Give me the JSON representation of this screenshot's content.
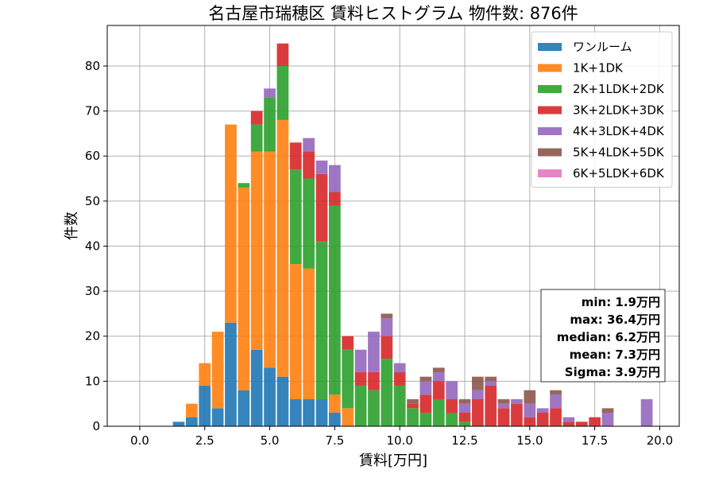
{
  "chart_data": {
    "type": "bar",
    "stacked": true,
    "title": "名古屋市瑞穂区 賃料ヒストグラム  物件数: 876件",
    "xlabel": "賃料[万円]",
    "ylabel": "件数",
    "xlim": [
      -1.25,
      20.75
    ],
    "ylim": [
      0,
      89
    ],
    "xticks": [
      "0.0",
      "2.5",
      "5.0",
      "7.5",
      "10.0",
      "12.5",
      "15.0",
      "17.5",
      "20.0"
    ],
    "xtick_values": [
      0,
      2.5,
      5,
      7.5,
      10,
      12.5,
      15,
      17.5,
      20
    ],
    "yticks": [
      0,
      10,
      20,
      30,
      40,
      50,
      60,
      70,
      80
    ],
    "grid": true,
    "legend_position": "top-right",
    "bin_width": 0.5,
    "x": [
      1.5,
      2.0,
      2.5,
      3.0,
      3.5,
      4.0,
      4.5,
      5.0,
      5.5,
      6.0,
      6.5,
      7.0,
      7.5,
      8.0,
      8.5,
      9.0,
      9.5,
      10.0,
      10.5,
      11.0,
      11.5,
      12.0,
      12.5,
      13.0,
      13.5,
      14.0,
      14.5,
      15.0,
      15.5,
      16.0,
      16.5,
      17.0,
      17.5,
      18.0,
      19.5
    ],
    "series": [
      {
        "name": "ワンルーム",
        "color": "#1f77b4",
        "values": [
          1,
          2,
          9,
          4,
          23,
          8,
          17,
          13,
          11,
          6,
          6,
          6,
          3,
          0,
          0,
          0,
          0,
          0,
          0,
          0,
          0,
          0,
          0,
          0,
          0,
          0,
          0,
          0,
          0,
          0,
          0,
          0,
          0,
          0,
          0
        ]
      },
      {
        "name": "1K+1DK",
        "color": "#ff7f0e",
        "values": [
          0,
          3,
          5,
          17,
          44,
          45,
          44,
          48,
          57,
          30,
          29,
          0,
          4,
          4,
          0,
          0,
          0,
          0,
          0,
          0,
          0,
          0,
          0,
          0,
          0,
          0,
          0,
          0,
          0,
          0,
          0,
          0,
          0,
          0,
          0
        ]
      },
      {
        "name": "2K+1LDK+2DK",
        "color": "#2ca02c",
        "values": [
          0,
          0,
          0,
          0,
          0,
          1,
          6,
          12,
          12,
          21,
          20,
          35,
          42,
          13,
          9,
          8,
          15,
          9,
          4,
          3,
          6,
          3,
          1,
          0,
          0,
          0,
          0,
          0,
          0,
          0,
          0,
          0,
          0,
          0,
          0
        ]
      },
      {
        "name": "3K+2LDK+3DK",
        "color": "#d62728",
        "values": [
          0,
          0,
          0,
          0,
          0,
          0,
          3,
          0,
          5,
          6,
          6,
          15,
          3,
          3,
          3,
          4,
          5,
          3,
          1,
          4,
          4,
          3,
          2,
          6,
          9,
          4,
          5,
          2,
          3,
          4,
          1,
          1,
          2,
          0,
          0
        ]
      },
      {
        "name": "4K+3LDK+4DK",
        "color": "#9467bd",
        "values": [
          0,
          0,
          0,
          0,
          0,
          0,
          0,
          2,
          0,
          0,
          3,
          3,
          6,
          0,
          5,
          9,
          4,
          2,
          0,
          3,
          2,
          4,
          2,
          2,
          1,
          1,
          1,
          3,
          1,
          3,
          1,
          0,
          0,
          3,
          6
        ]
      },
      {
        "name": "5K+4LDK+5DK",
        "color": "#8c564b",
        "values": [
          0,
          0,
          0,
          0,
          0,
          0,
          0,
          0,
          0,
          0,
          0,
          0,
          0,
          0,
          0,
          0,
          1,
          0,
          1,
          1,
          1,
          0,
          1,
          3,
          1,
          1,
          0,
          3,
          0,
          1,
          0,
          0,
          0,
          1,
          0
        ]
      },
      {
        "name": "6K+5LDK+6DK",
        "color": "#e377c2",
        "values": [
          0,
          0,
          0,
          0,
          0,
          0,
          0,
          0,
          0,
          0,
          0,
          0,
          0,
          0,
          0,
          0,
          0,
          0,
          0,
          0,
          0,
          0,
          0,
          0,
          0,
          0,
          0,
          0,
          0,
          0,
          0,
          0,
          0,
          0,
          0
        ]
      }
    ],
    "stats": [
      "min: 1.9万円",
      "max: 36.4万円",
      "median: 6.2万円",
      "mean: 7.3万円",
      "Sigma: 3.9万円"
    ]
  }
}
